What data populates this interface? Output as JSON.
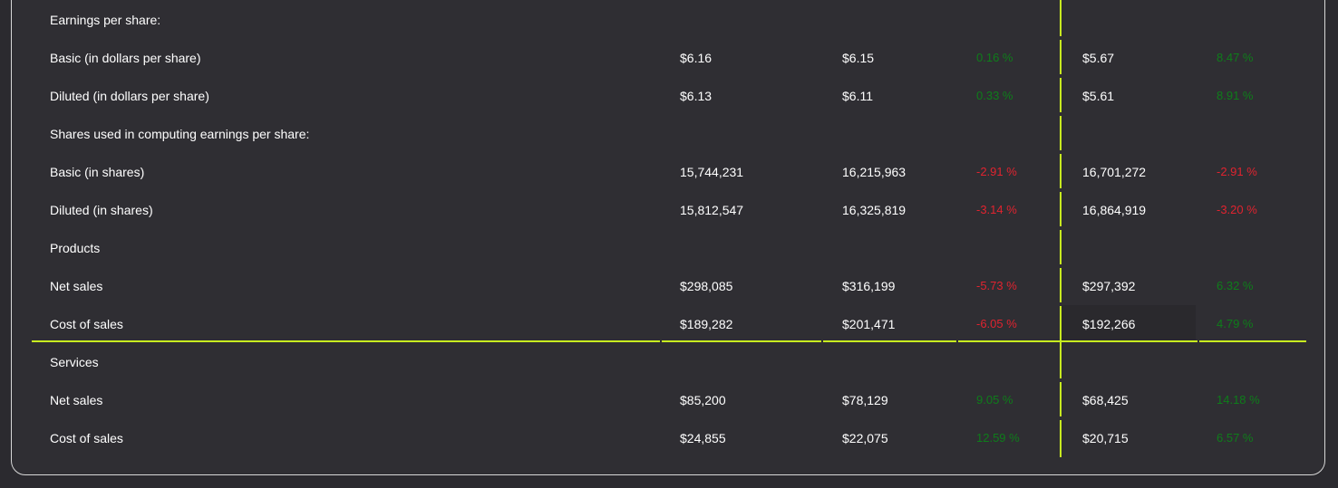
{
  "rows": [
    {
      "label": "Earnings per share:",
      "v1": "",
      "v2": "",
      "p1": "",
      "p1_sign": "",
      "v3": "",
      "p2": "",
      "p2_sign": ""
    },
    {
      "label": "Basic (in dollars per share)",
      "v1": "$6.16",
      "v2": "$6.15",
      "p1": "0.16 %",
      "p1_sign": "pos",
      "v3": "$5.67",
      "p2": "8.47 %",
      "p2_sign": "pos"
    },
    {
      "label": "Diluted (in dollars per share)",
      "v1": "$6.13",
      "v2": "$6.11",
      "p1": "0.33 %",
      "p1_sign": "pos",
      "v3": "$5.61",
      "p2": "8.91 %",
      "p2_sign": "pos"
    },
    {
      "label": "Shares used in computing earnings per share:",
      "v1": "",
      "v2": "",
      "p1": "",
      "p1_sign": "",
      "v3": "",
      "p2": "",
      "p2_sign": ""
    },
    {
      "label": "Basic (in shares)",
      "v1": "15,744,231",
      "v2": "16,215,963",
      "p1": "-2.91 %",
      "p1_sign": "neg",
      "v3": "16,701,272",
      "p2": "-2.91 %",
      "p2_sign": "neg"
    },
    {
      "label": "Diluted (in shares)",
      "v1": "15,812,547",
      "v2": "16,325,819",
      "p1": "-3.14 %",
      "p1_sign": "neg",
      "v3": "16,864,919",
      "p2": "-3.20 %",
      "p2_sign": "neg"
    },
    {
      "label": "Products",
      "v1": "",
      "v2": "",
      "p1": "",
      "p1_sign": "",
      "v3": "",
      "p2": "",
      "p2_sign": ""
    },
    {
      "label": "Net sales",
      "v1": "$298,085",
      "v2": "$316,199",
      "p1": "-5.73 %",
      "p1_sign": "neg",
      "v3": "$297,392",
      "p2": "6.32 %",
      "p2_sign": "pos"
    },
    {
      "label": "Cost of sales",
      "v1": "$189,282",
      "v2": "$201,471",
      "p1": "-6.05 %",
      "p1_sign": "neg",
      "v3": "$192,266",
      "p2": "4.79 %",
      "p2_sign": "pos"
    },
    {
      "label": "Services",
      "v1": "",
      "v2": "",
      "p1": "",
      "p1_sign": "",
      "v3": "",
      "p2": "",
      "p2_sign": ""
    },
    {
      "label": "Net sales",
      "v1": "$85,200",
      "v2": "$78,129",
      "p1": "9.05 %",
      "p1_sign": "pos",
      "v3": "$68,425",
      "p2": "14.18 %",
      "p2_sign": "pos"
    },
    {
      "label": "Cost of sales",
      "v1": "$24,855",
      "v2": "$22,075",
      "p1": "12.59 %",
      "p1_sign": "pos",
      "v3": "$20,715",
      "p2": "6.57 %",
      "p2_sign": "pos"
    }
  ],
  "colors": {
    "positive": "#0e7d1a",
    "negative": "#e0232f",
    "accent_line": "#c8f020",
    "background": "#2f2e33",
    "text": "#ffffff"
  }
}
